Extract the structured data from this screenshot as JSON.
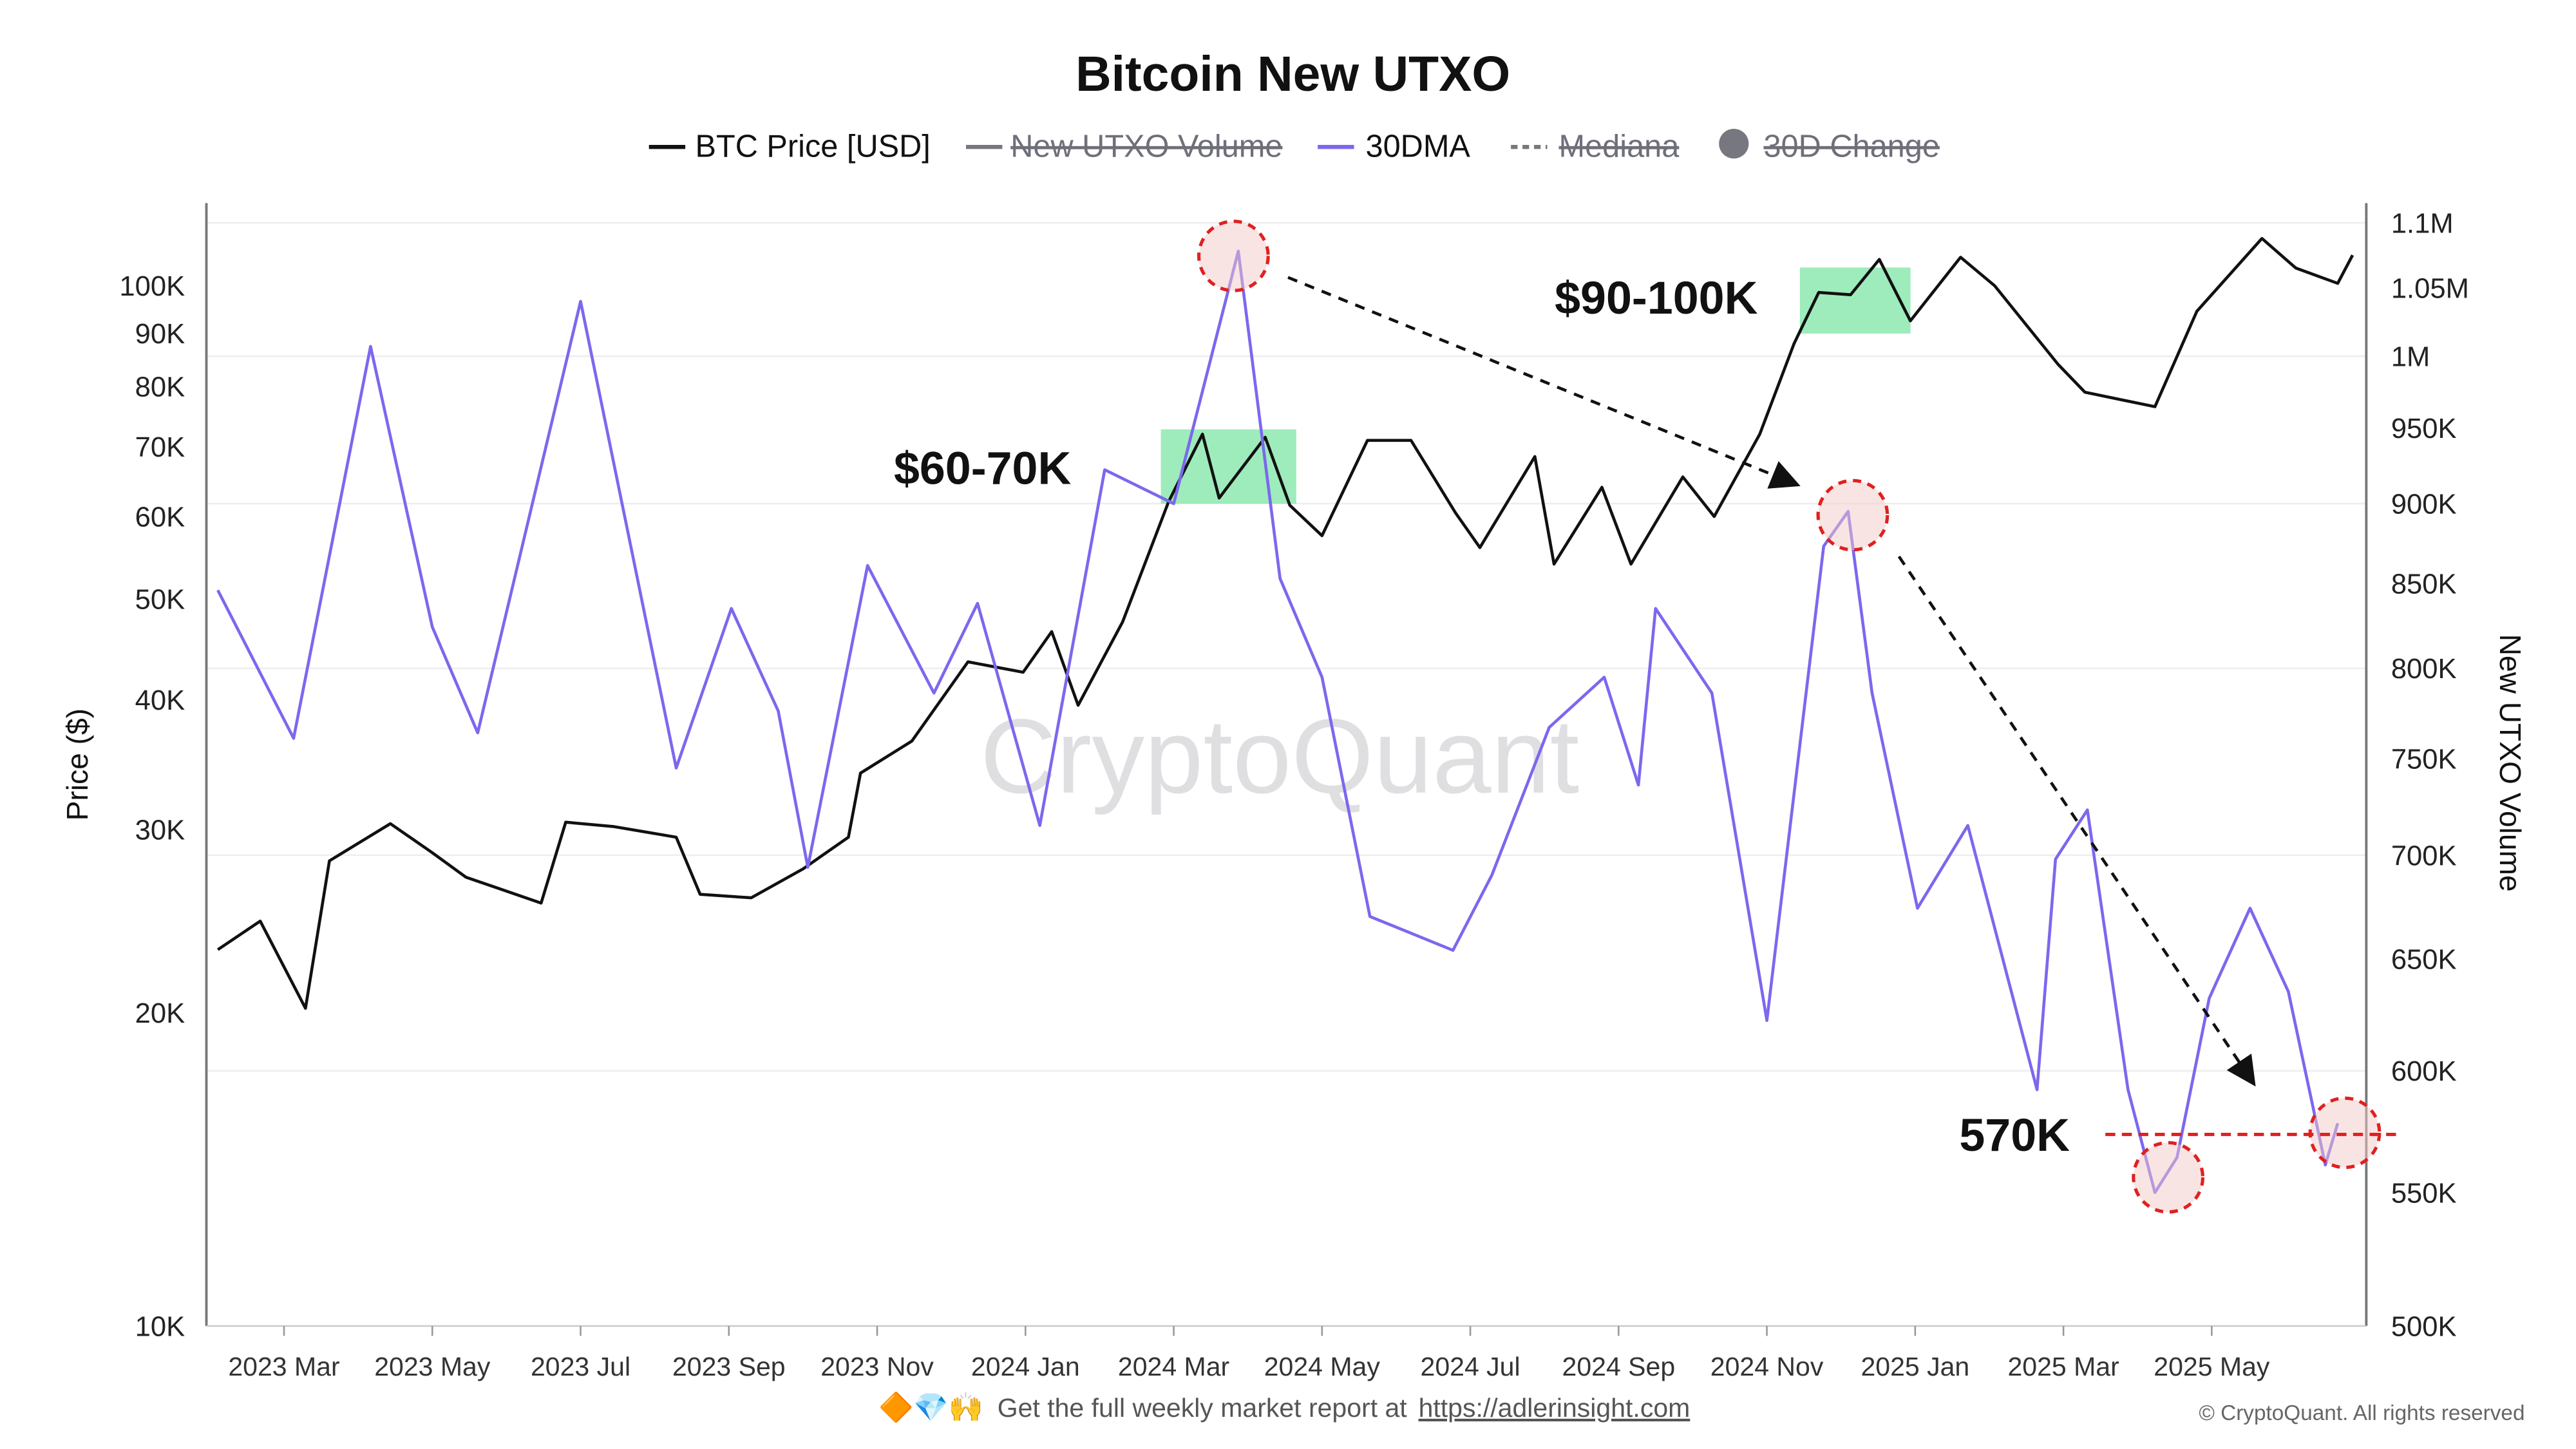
{
  "chart_data": {
    "type": "line",
    "title": "Bitcoin New UTXO",
    "legend": {
      "placement": "top-center",
      "items": [
        {
          "label": "BTC Price [USD]",
          "color": "#111111",
          "style": "solid",
          "active": true
        },
        {
          "label": "New UTXO Volume",
          "color": "#77777f",
          "style": "solid",
          "active": false
        },
        {
          "label": "30DMA",
          "color": "#7b68ee",
          "style": "solid",
          "active": true
        },
        {
          "label": "Mediana",
          "color": "#77777f",
          "style": "dashed",
          "active": false
        },
        {
          "label": "30D Change",
          "color": "#77777f",
          "style": "dot",
          "active": false
        }
      ]
    },
    "ylabel_left": "Price ($)",
    "ylabel_right": "New UTXO Volume",
    "y_left": {
      "scale": "log",
      "range": [
        10000,
        130000
      ],
      "ticks": [
        10000,
        20000,
        30000,
        40000,
        50000,
        60000,
        70000,
        80000,
        90000,
        100000
      ],
      "tick_labels": [
        "10K",
        "20K",
        "30K",
        "40K",
        "50K",
        "60K",
        "70K",
        "80K",
        "90K",
        "100K"
      ]
    },
    "y_right": {
      "scale": "log",
      "range": [
        500000,
        1100000
      ],
      "ticks": [
        500000,
        550000,
        600000,
        650000,
        700000,
        750000,
        800000,
        850000,
        900000,
        950000,
        1000000,
        1050000,
        1100000
      ],
      "tick_labels": [
        "500K",
        "550K",
        "600K",
        "650K",
        "700K",
        "750K",
        "800K",
        "850K",
        "900K",
        "950K",
        "1M",
        "1.05M",
        "1.1M"
      ]
    },
    "x_ticks": [
      {
        "date": "2023-03-01",
        "label": "2023 Mar"
      },
      {
        "date": "2023-05-01",
        "label": "2023 May"
      },
      {
        "date": "2023-07-01",
        "label": "2023 Jul"
      },
      {
        "date": "2023-09-01",
        "label": "2023 Sep"
      },
      {
        "date": "2023-11-01",
        "label": "2023 Nov"
      },
      {
        "date": "2024-01-01",
        "label": "2024 Jan"
      },
      {
        "date": "2024-03-01",
        "label": "2024 Mar"
      },
      {
        "date": "2024-05-01",
        "label": "2024 May"
      },
      {
        "date": "2024-07-01",
        "label": "2024 Jul"
      },
      {
        "date": "2024-09-01",
        "label": "2024 Sep"
      },
      {
        "date": "2024-11-01",
        "label": "2024 Nov"
      },
      {
        "date": "2025-01-01",
        "label": "2025 Jan"
      },
      {
        "date": "2025-03-01",
        "label": "2025 Mar"
      },
      {
        "date": "2025-05-01",
        "label": "2025 May"
      }
    ],
    "grid": true,
    "series": [
      {
        "name": "BTC Price [USD]",
        "axis": "left",
        "color": "#111111",
        "x": [
          "2023-02-04",
          "2023-02-20",
          "2023-03-10",
          "2023-03-20",
          "2023-04-14",
          "2023-05-01",
          "2023-05-15",
          "2023-06-15",
          "2023-06-25",
          "2023-07-15",
          "2023-08-10",
          "2023-08-20",
          "2023-09-10",
          "2023-10-01",
          "2023-10-20",
          "2023-10-25",
          "2023-11-15",
          "2023-12-08",
          "2023-12-31",
          "2024-01-12",
          "2024-01-23",
          "2024-02-10",
          "2024-02-28",
          "2024-03-13",
          "2024-03-20",
          "2024-04-08",
          "2024-04-18",
          "2024-05-01",
          "2024-05-20",
          "2024-06-07",
          "2024-06-25",
          "2024-07-05",
          "2024-07-28",
          "2024-08-05",
          "2024-08-25",
          "2024-09-06",
          "2024-09-27",
          "2024-10-10",
          "2024-10-29",
          "2024-11-12",
          "2024-11-22",
          "2024-12-05",
          "2024-12-17",
          "2024-12-30",
          "2025-01-20",
          "2025-02-03",
          "2025-02-27",
          "2025-03-10",
          "2025-04-08",
          "2025-04-25",
          "2025-05-22",
          "2025-06-05",
          "2025-06-22",
          "2025-06-28"
        ],
        "y": [
          23000,
          24500,
          20200,
          28000,
          30400,
          28500,
          27000,
          25500,
          30500,
          30200,
          29500,
          26000,
          25800,
          27500,
          29500,
          34000,
          36500,
          43500,
          42500,
          46500,
          39500,
          47500,
          62000,
          72000,
          62500,
          71500,
          61500,
          57500,
          71000,
          71000,
          60500,
          56000,
          68500,
          54000,
          64000,
          54000,
          65500,
          60000,
          72000,
          88000,
          98500,
          98000,
          106000,
          92500,
          106500,
          100000,
          84000,
          79000,
          76500,
          94500,
          111000,
          104000,
          100500,
          107000
        ]
      },
      {
        "name": "30DMA",
        "axis": "right",
        "color": "#7b68ee",
        "x": [
          "2023-02-04",
          "2023-03-05",
          "2023-04-06",
          "2023-05-01",
          "2023-05-20",
          "2023-07-01",
          "2023-07-22",
          "2023-08-10",
          "2023-09-02",
          "2023-09-21",
          "2023-10-03",
          "2023-10-28",
          "2023-11-24",
          "2023-12-12",
          "2024-01-07",
          "2024-02-03",
          "2024-03-01",
          "2024-03-28",
          "2024-04-14",
          "2024-05-01",
          "2024-05-21",
          "2024-06-24",
          "2024-07-10",
          "2024-08-03",
          "2024-08-26",
          "2024-09-09",
          "2024-09-16",
          "2024-10-09",
          "2024-11-01",
          "2024-11-24",
          "2024-12-04",
          "2024-12-14",
          "2025-01-02",
          "2025-01-23",
          "2025-02-19",
          "2025-02-26",
          "2025-03-11",
          "2025-03-28",
          "2025-04-08",
          "2025-04-17",
          "2025-04-30",
          "2025-05-17",
          "2025-06-02",
          "2025-06-17",
          "2025-06-22"
        ],
        "y": [
          846000,
          761000,
          1007000,
          824000,
          764000,
          1040000,
          873000,
          745000,
          835000,
          776000,
          694000,
          861000,
          786000,
          838000,
          715000,
          922000,
          900000,
          1078000,
          853000,
          795000,
          670000,
          654000,
          690000,
          767000,
          795000,
          736000,
          835000,
          786000,
          622000,
          873000,
          895000,
          786000,
          674000,
          715000,
          592000,
          698000,
          723000,
          592000,
          550000,
          564000,
          632000,
          674000,
          635000,
          561000,
          578000
        ]
      }
    ],
    "annotations": {
      "label_60_70k": "$60-70K",
      "label_90_100k": "$90-100K",
      "label_570k": "570K"
    },
    "watermark": "CryptoQuant"
  },
  "footer": {
    "emojis": "🔶💎🙌",
    "text": "Get the full weekly market report at",
    "link": "https://adlerinsight.com",
    "copyright": "© CryptoQuant. All rights reserved"
  }
}
